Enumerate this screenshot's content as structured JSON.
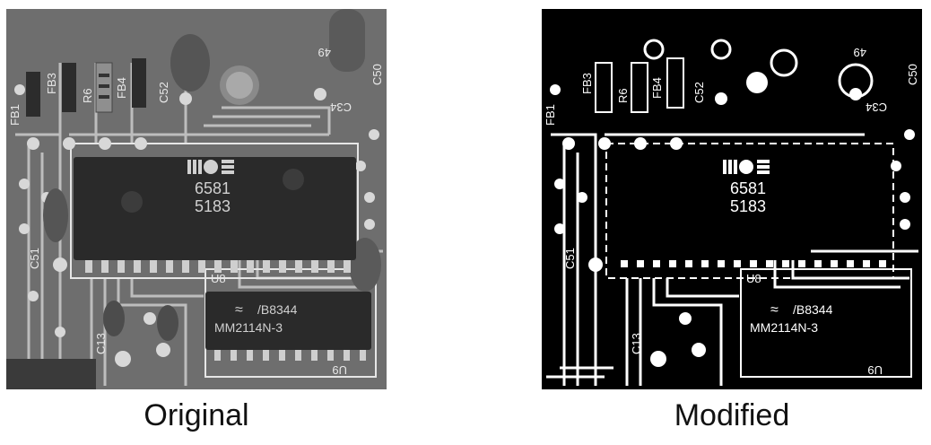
{
  "captions": {
    "original": "Original",
    "modified": "Modified"
  },
  "board_labels": {
    "chip_main_line1": "6581",
    "chip_main_line2": "5183",
    "chip_small_line1": "/B8344",
    "chip_small_line2": "MM2114N-3",
    "silk_fb1": "FB1",
    "silk_fb3": "FB3",
    "silk_r6": "R6",
    "silk_fb4": "FB4",
    "silk_c52": "C52",
    "silk_c34": "C34",
    "silk_c50": "C50",
    "silk_c51": "C51",
    "silk_u8": "U8",
    "silk_u9": "U9",
    "silk_c49": "49",
    "silk_c13": "C13"
  },
  "colors": {
    "board_gray": "#6c6c6c",
    "chip_dark": "#2a2a2a",
    "trace_light": "#cfcfcf",
    "binary_black": "#000000",
    "binary_white": "#ffffff"
  }
}
